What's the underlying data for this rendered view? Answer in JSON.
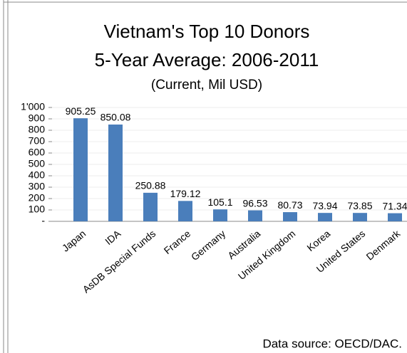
{
  "chart_data": {
    "type": "bar",
    "title": "Vietnam's Top 10 Donors",
    "subtitle": "5-Year Average: 2006-2011",
    "y_label": "(Current, Mil USD)",
    "source": "Data source: OECD/DAC.",
    "categories": [
      "Japan",
      "IDA",
      "AsDB Special Funds",
      "France",
      "Germany",
      "Australia",
      "United Kingdom",
      "Korea",
      "United States",
      "Denmark"
    ],
    "values": [
      905.25,
      850.08,
      250.88,
      179.12,
      105.1,
      96.53,
      80.73,
      73.94,
      73.85,
      71.34
    ],
    "color": "#4a7ebb",
    "ylim": [
      0,
      1000
    ],
    "yticks": [
      {
        "value": 0,
        "label": "-"
      },
      100,
      200,
      300,
      400,
      500,
      600,
      700,
      800,
      900,
      {
        "value": 1000,
        "label": "1'000"
      }
    ],
    "grid": true
  }
}
